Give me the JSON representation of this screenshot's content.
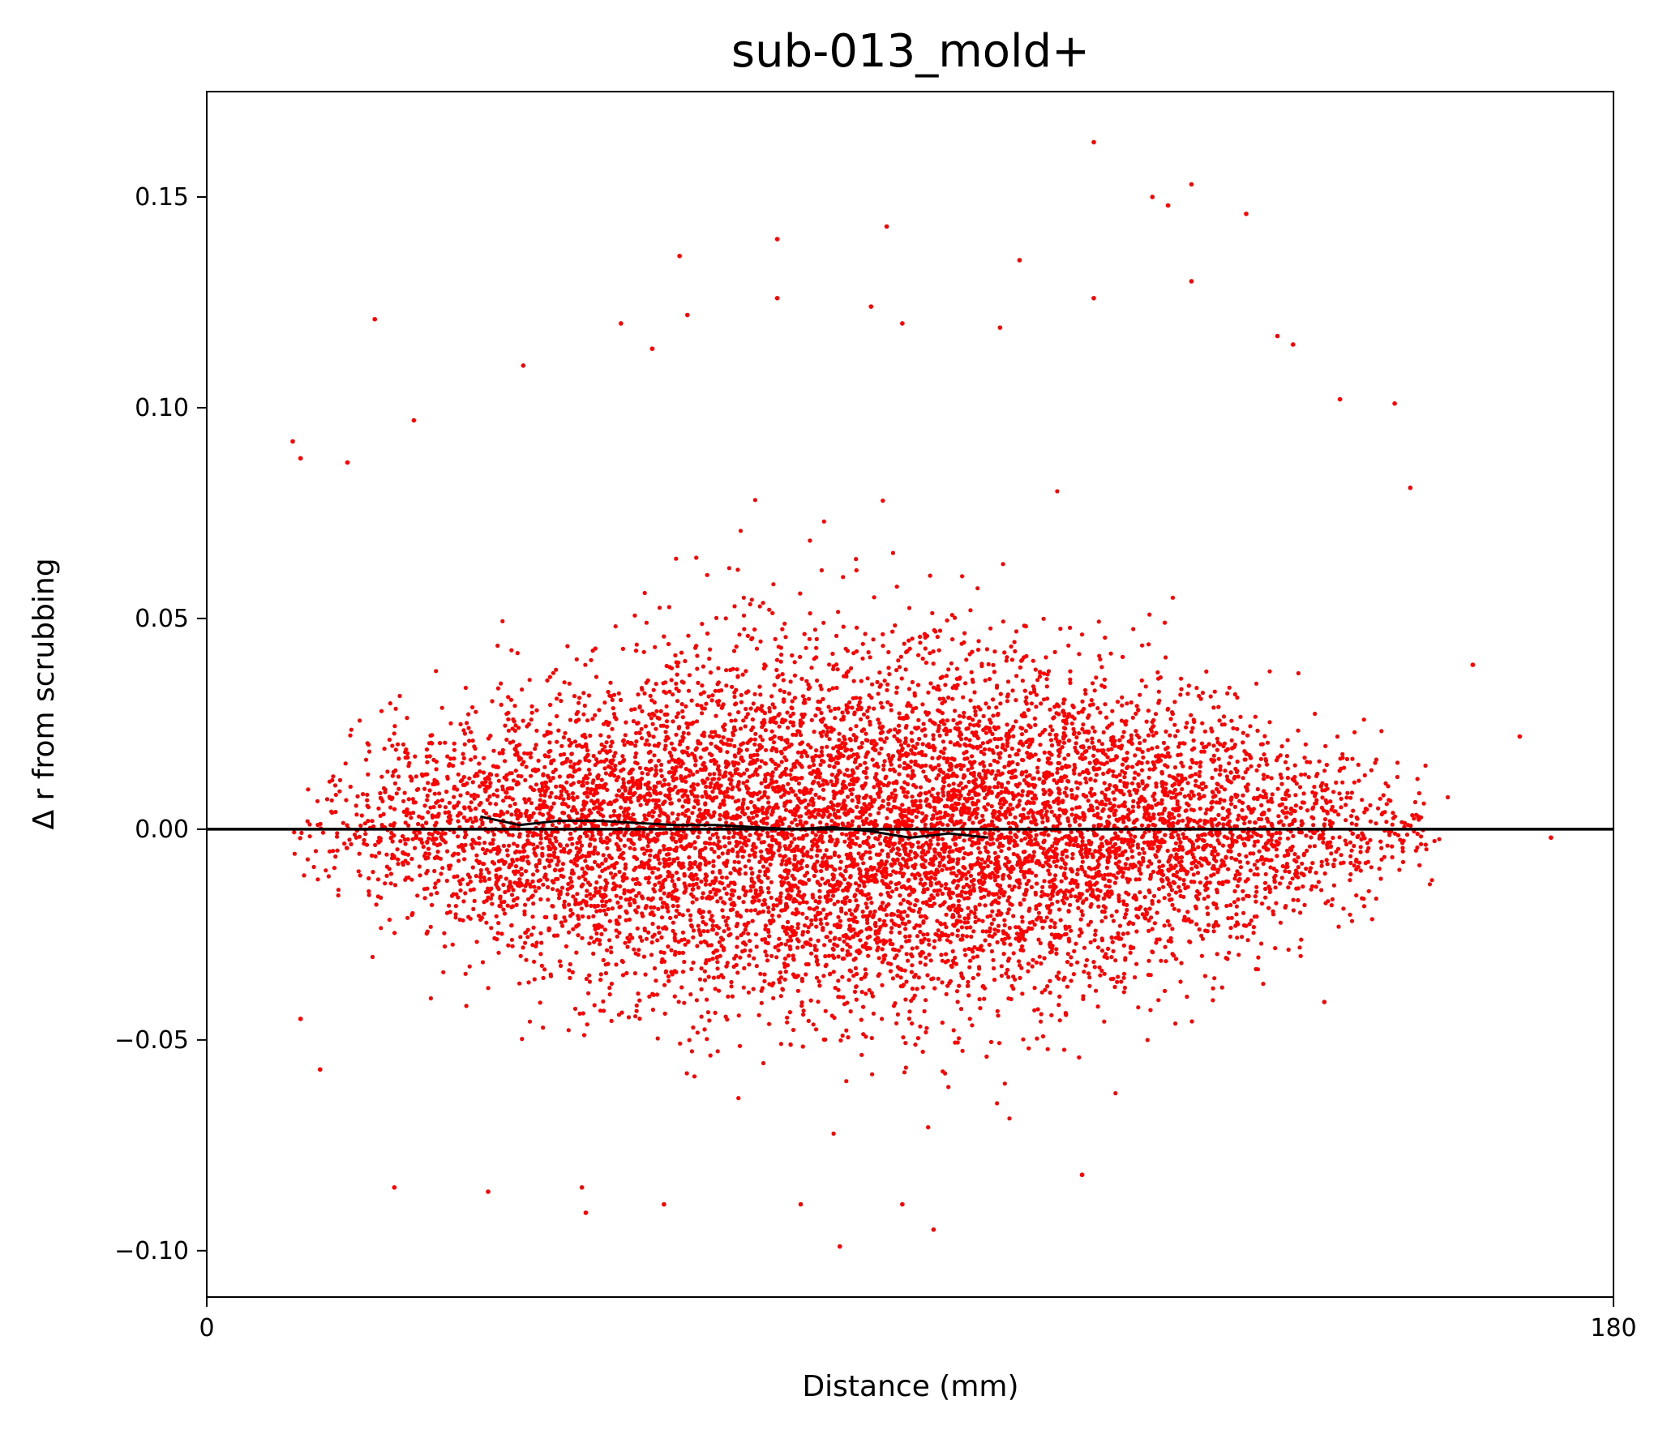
{
  "chart_data": {
    "type": "scatter",
    "title": "sub-013_mold+",
    "xlabel": "Distance (mm)",
    "ylabel": "Δ r from scrubbing",
    "xlim": [
      0,
      180
    ],
    "ylim": [
      -0.111,
      0.175
    ],
    "x_ticks": [
      {
        "value": 0,
        "label": "0"
      },
      {
        "value": 180,
        "label": "180"
      }
    ],
    "y_ticks": [
      {
        "value": 0.15,
        "label": "0.15"
      },
      {
        "value": 0.1,
        "label": "0.10"
      },
      {
        "value": 0.05,
        "label": "0.05"
      },
      {
        "value": 0.0,
        "label": "0.00"
      },
      {
        "value": -0.05,
        "label": "−0.05"
      },
      {
        "value": -0.1,
        "label": "−0.10"
      }
    ],
    "grid": false,
    "legend": "none",
    "colors": {
      "points": "#ff0000",
      "trend": "#000000",
      "zero_line": "#000000"
    },
    "series": [
      {
        "kind": "scatter",
        "x_range": [
          10,
          172
        ],
        "center_y": 0.0,
        "note_count_shown": "dense cloud of thousands of points",
        "outliers": [
          {
            "x": 113.5,
            "y": 0.163
          },
          {
            "x": 126.0,
            "y": 0.153
          },
          {
            "x": 121.0,
            "y": 0.15
          },
          {
            "x": 123.0,
            "y": 0.148
          },
          {
            "x": 133.0,
            "y": 0.146
          },
          {
            "x": 87.0,
            "y": 0.143
          },
          {
            "x": 73.0,
            "y": 0.14
          },
          {
            "x": 60.5,
            "y": 0.136
          },
          {
            "x": 104.0,
            "y": 0.135
          },
          {
            "x": 126.0,
            "y": 0.13
          },
          {
            "x": 113.5,
            "y": 0.126
          },
          {
            "x": 73.0,
            "y": 0.126
          },
          {
            "x": 85.0,
            "y": 0.124
          },
          {
            "x": 61.5,
            "y": 0.122
          },
          {
            "x": 21.5,
            "y": 0.121
          },
          {
            "x": 53.0,
            "y": 0.12
          },
          {
            "x": 89.0,
            "y": 0.12
          },
          {
            "x": 101.5,
            "y": 0.119
          },
          {
            "x": 137.0,
            "y": 0.117
          },
          {
            "x": 139.0,
            "y": 0.115
          },
          {
            "x": 57.0,
            "y": 0.114
          },
          {
            "x": 40.5,
            "y": 0.11
          },
          {
            "x": 145.0,
            "y": 0.102
          },
          {
            "x": 152.0,
            "y": 0.101
          },
          {
            "x": 26.5,
            "y": 0.097
          },
          {
            "x": 12.0,
            "y": 0.088
          },
          {
            "x": 11.0,
            "y": 0.092
          },
          {
            "x": 18.0,
            "y": 0.087
          },
          {
            "x": 154.0,
            "y": 0.081
          },
          {
            "x": 81.0,
            "y": -0.099
          },
          {
            "x": 93.0,
            "y": -0.095
          },
          {
            "x": 48.5,
            "y": -0.091
          },
          {
            "x": 58.5,
            "y": -0.089
          },
          {
            "x": 76.0,
            "y": -0.089
          },
          {
            "x": 89.0,
            "y": -0.089
          },
          {
            "x": 24.0,
            "y": -0.085
          },
          {
            "x": 36.0,
            "y": -0.086
          },
          {
            "x": 48.0,
            "y": -0.085
          },
          {
            "x": 112.0,
            "y": -0.082
          },
          {
            "x": 14.5,
            "y": -0.057
          },
          {
            "x": 12.0,
            "y": -0.045
          },
          {
            "x": 143.0,
            "y": -0.041
          },
          {
            "x": 162.0,
            "y": 0.039
          },
          {
            "x": 168.0,
            "y": 0.022
          },
          {
            "x": 172.0,
            "y": -0.002
          }
        ]
      },
      {
        "kind": "line",
        "x": [
          35,
          40,
          45,
          50,
          55,
          60,
          65,
          70,
          75,
          80,
          85,
          90,
          95,
          100
        ],
        "y": [
          0.003,
          0.001,
          0.002,
          0.002,
          0.0015,
          0.001,
          0.001,
          0.0005,
          0.0,
          0.0005,
          -0.0005,
          -0.002,
          -0.001,
          -0.002
        ]
      }
    ],
    "reference_line": {
      "y": 0.0
    }
  }
}
